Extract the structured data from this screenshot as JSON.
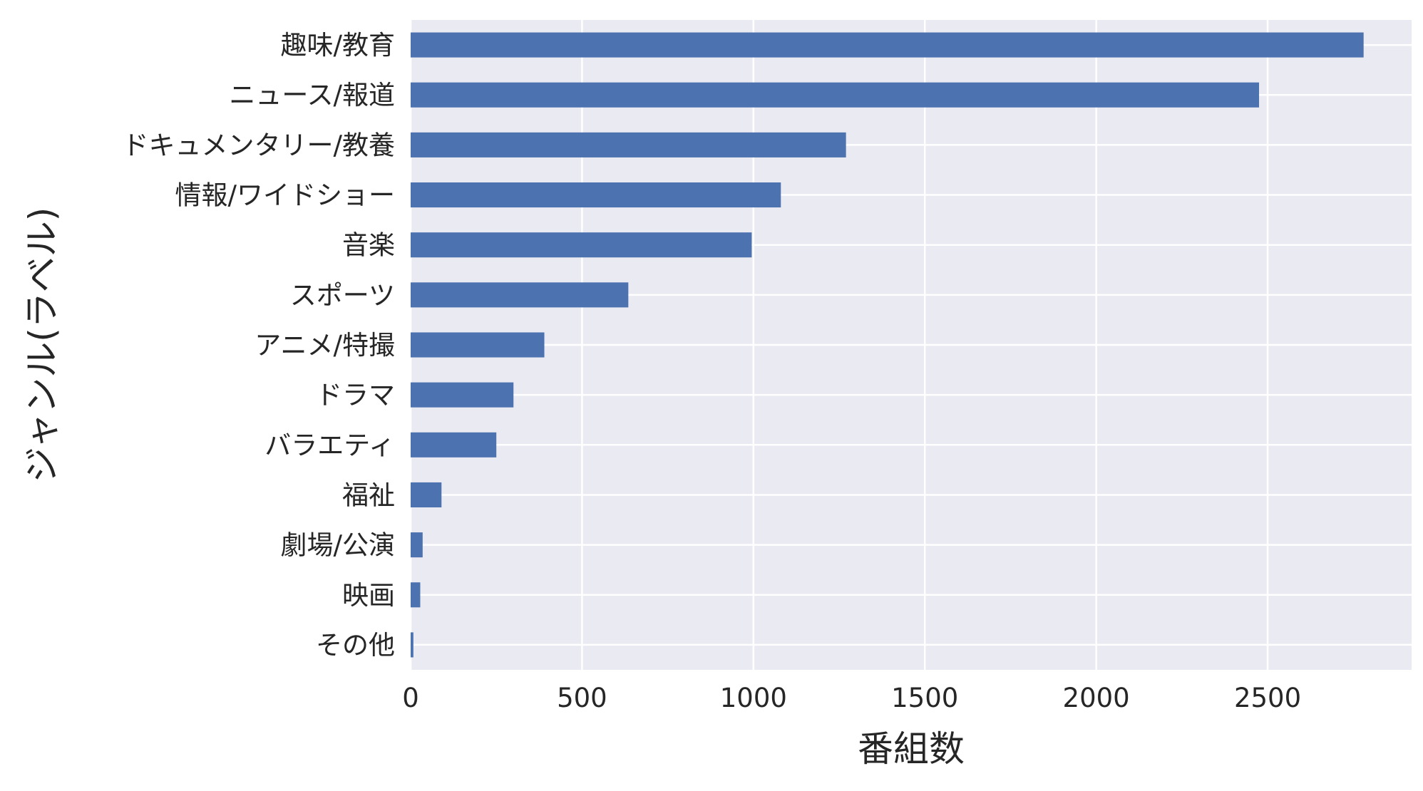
{
  "chart_data": {
    "type": "bar",
    "orientation": "horizontal",
    "categories": [
      "趣味/教育",
      "ニュース/報道",
      "ドキュメンタリー/教養",
      "情報/ワイドショー",
      "音楽",
      "スポーツ",
      "アニメ/特撮",
      "ドラマ",
      "バラエティ",
      "福祉",
      "劇場/公演",
      "映画",
      "その他"
    ],
    "values": [
      2780,
      2475,
      1270,
      1080,
      995,
      635,
      390,
      300,
      250,
      90,
      35,
      28,
      8
    ],
    "xlabel": "番組数",
    "ylabel": "ジャンル(ラベル)",
    "xlim": [
      0,
      2920
    ],
    "xticks": [
      "0",
      "500",
      "1000",
      "1500",
      "2000",
      "2500"
    ],
    "grid": true,
    "colors": {
      "bar": "#4c72b0",
      "background": "#eaeaf2",
      "grid": "#ffffff",
      "text": "#262626"
    }
  }
}
